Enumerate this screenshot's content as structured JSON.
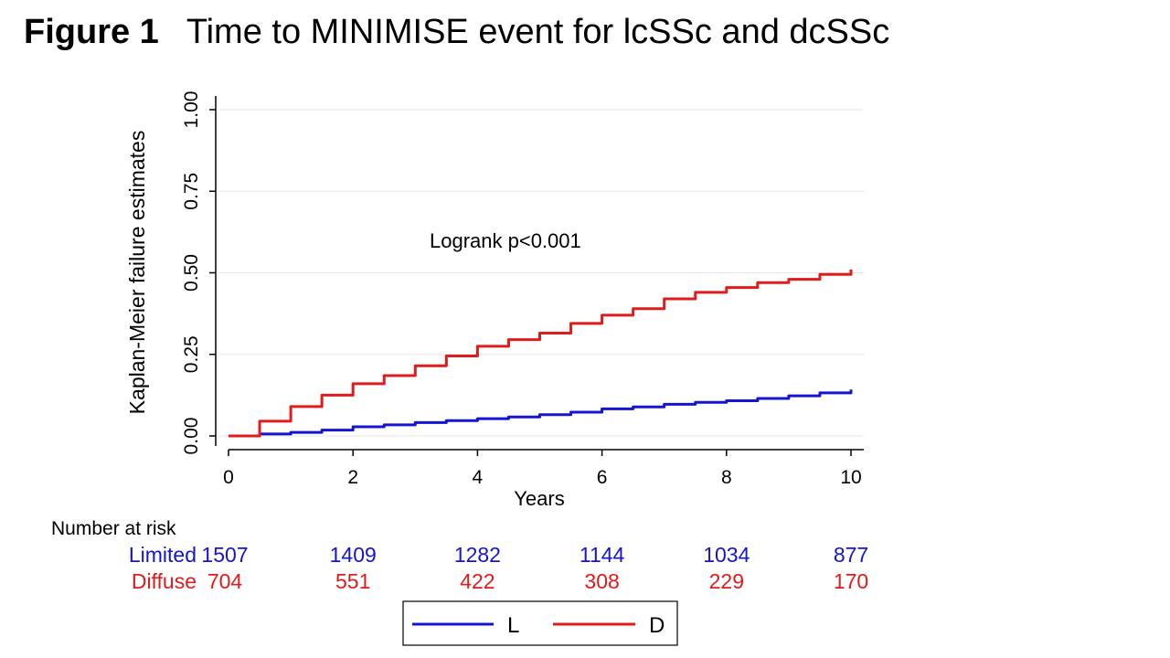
{
  "figure": {
    "label": "Figure 1",
    "title": "Time to MINIMISE event for lcSSc and dcSSc"
  },
  "colors": {
    "limited": "#1414d2",
    "diffuse": "#e01b1b",
    "axis": "#000000",
    "grid": "#e6e6e6"
  },
  "chart_data": {
    "type": "line",
    "title": "Time to MINIMISE event for lcSSc and dcSSc",
    "xlabel": "Years",
    "ylabel": "Kaplan-Meier failure estimates",
    "xlim": [
      0,
      10
    ],
    "ylim": [
      0,
      1
    ],
    "xticks": [
      "0",
      "2",
      "4",
      "6",
      "8",
      "10"
    ],
    "yticks": [
      "0.00",
      "0.25",
      "0.50",
      "0.75",
      "1.00"
    ],
    "grid": true,
    "annotation": "Logrank p<0.001",
    "series": [
      {
        "name": "L",
        "x": [
          0,
          0.5,
          1,
          1.5,
          2,
          2.5,
          3,
          3.5,
          4,
          4.5,
          5,
          5.5,
          6,
          6.5,
          7,
          7.5,
          8,
          8.5,
          9,
          9.5,
          10
        ],
        "y": [
          0,
          0.006,
          0.011,
          0.018,
          0.028,
          0.034,
          0.041,
          0.047,
          0.053,
          0.058,
          0.065,
          0.073,
          0.083,
          0.089,
          0.097,
          0.103,
          0.108,
          0.115,
          0.123,
          0.132,
          0.142
        ]
      },
      {
        "name": "D",
        "x": [
          0,
          0.5,
          1,
          1.5,
          2,
          2.5,
          3,
          3.5,
          4,
          4.5,
          5,
          5.5,
          6,
          6.5,
          7,
          7.5,
          8,
          8.5,
          9,
          9.5,
          10
        ],
        "y": [
          0,
          0.045,
          0.09,
          0.125,
          0.16,
          0.185,
          0.215,
          0.245,
          0.275,
          0.295,
          0.315,
          0.345,
          0.37,
          0.39,
          0.42,
          0.44,
          0.455,
          0.47,
          0.48,
          0.495,
          0.51
        ]
      }
    ],
    "risk_table": {
      "header": "Number at risk",
      "rows": [
        {
          "label": "Limited",
          "values": [
            "1507",
            "1409",
            "1282",
            "1144",
            "1034",
            "877"
          ]
        },
        {
          "label": "Diffuse",
          "values": [
            "704",
            "551",
            "422",
            "308",
            "229",
            "170"
          ]
        }
      ]
    },
    "legend": {
      "position": "bottom-center",
      "entries": [
        "L",
        "D"
      ]
    }
  }
}
